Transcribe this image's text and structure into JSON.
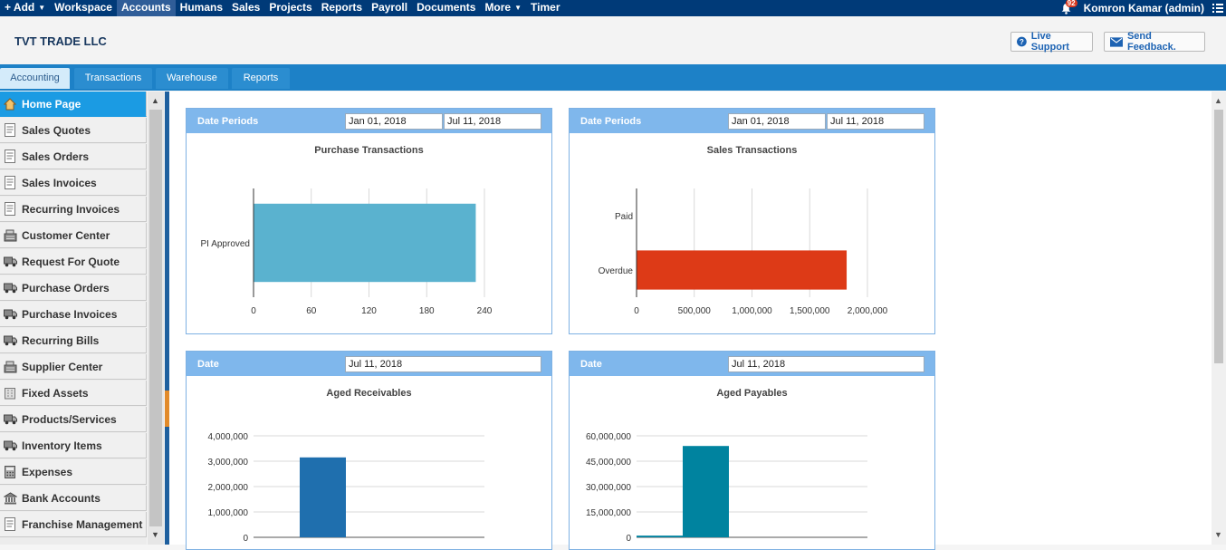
{
  "nav": {
    "items": [
      {
        "label": "+ Add",
        "caret": true
      },
      {
        "label": "Workspace"
      },
      {
        "label": "Accounts",
        "active": true
      },
      {
        "label": "Humans"
      },
      {
        "label": "Sales"
      },
      {
        "label": "Projects"
      },
      {
        "label": "Reports"
      },
      {
        "label": "Payroll"
      },
      {
        "label": "Documents"
      },
      {
        "label": "More",
        "caret": true
      },
      {
        "label": "Timer"
      }
    ],
    "notifications": "92",
    "user": "Komron Kamar (admin)"
  },
  "header": {
    "company": "TVT TRADE LLC",
    "support_label": "Live Support",
    "feedback_label": "Send Feedback."
  },
  "tabs": [
    {
      "label": "Accounting",
      "active": true
    },
    {
      "label": "Transactions"
    },
    {
      "label": "Warehouse"
    },
    {
      "label": "Reports"
    }
  ],
  "sidebar": {
    "items": [
      {
        "label": "Home Page",
        "icon": "home-icon"
      },
      {
        "label": "Sales Quotes",
        "icon": "document-icon"
      },
      {
        "label": "Sales Orders",
        "icon": "document-icon"
      },
      {
        "label": "Sales Invoices",
        "icon": "document-icon"
      },
      {
        "label": "Recurring Invoices",
        "icon": "document-icon"
      },
      {
        "label": "Customer Center",
        "icon": "cash-register-icon"
      },
      {
        "label": "Request For Quote",
        "icon": "truck-icon"
      },
      {
        "label": "Purchase Orders",
        "icon": "truck-icon"
      },
      {
        "label": "Purchase Invoices",
        "icon": "truck-icon"
      },
      {
        "label": "Recurring Bills",
        "icon": "truck-icon"
      },
      {
        "label": "Supplier Center",
        "icon": "cash-register-icon"
      },
      {
        "label": "Fixed Assets",
        "icon": "building-icon"
      },
      {
        "label": "Products/Services",
        "icon": "truck-icon"
      },
      {
        "label": "Inventory Items",
        "icon": "truck-icon"
      },
      {
        "label": "Expenses",
        "icon": "calculator-icon"
      },
      {
        "label": "Bank Accounts",
        "icon": "bank-icon"
      },
      {
        "label": "Franchise Management",
        "icon": "document-icon"
      }
    ]
  },
  "panels": {
    "purchase": {
      "header": "Date Periods",
      "from": "Jan 01, 2018",
      "to": "Jul 11, 2018",
      "title": "Purchase Transactions"
    },
    "sales": {
      "header": "Date Periods",
      "from": "Jan 01, 2018",
      "to": "Jul 11, 2018",
      "title": "Sales Transactions"
    },
    "receivables": {
      "header": "Date",
      "date": "Jul 11, 2018",
      "title": "Aged Receivables"
    },
    "payables": {
      "header": "Date",
      "date": "Jul 11, 2018",
      "title": "Aged Payables"
    }
  },
  "chart_data": [
    {
      "type": "bar",
      "orientation": "horizontal",
      "title": "Purchase Transactions",
      "categories": [
        "PI Approved"
      ],
      "values": [
        231
      ],
      "xlim": [
        0,
        240
      ],
      "ticks": [
        "0",
        "60",
        "120",
        "180",
        "240"
      ],
      "color": "#5ab2cf",
      "grid": true
    },
    {
      "type": "bar",
      "orientation": "horizontal",
      "title": "Sales Transactions",
      "categories": [
        "Paid",
        "Overdue"
      ],
      "values": [
        0,
        1820000
      ],
      "xlim": [
        0,
        2000000
      ],
      "ticks": [
        "0",
        "500,000",
        "1,000,000",
        "1,500,000",
        "2,000,000"
      ],
      "color": "#dd3a17",
      "grid": true
    },
    {
      "type": "bar",
      "title": "Aged Receivables",
      "categories": [
        "",
        "",
        "",
        "",
        ""
      ],
      "values": [
        0,
        3150000,
        0,
        0,
        0
      ],
      "ylim": [
        0,
        4000000
      ],
      "ticks": [
        "0",
        "1,000,000",
        "2,000,000",
        "3,000,000",
        "4,000,000"
      ],
      "color": "#1f6fae",
      "grid": true
    },
    {
      "type": "bar",
      "title": "Aged Payables",
      "categories": [
        "",
        "",
        "",
        "",
        ""
      ],
      "values": [
        1000000,
        54000000,
        0,
        0,
        0
      ],
      "ylim": [
        0,
        60000000
      ],
      "ticks": [
        "0",
        "15,000,000",
        "30,000,000",
        "45,000,000",
        "60,000,000"
      ],
      "color": "#00839f",
      "grid": true
    }
  ]
}
